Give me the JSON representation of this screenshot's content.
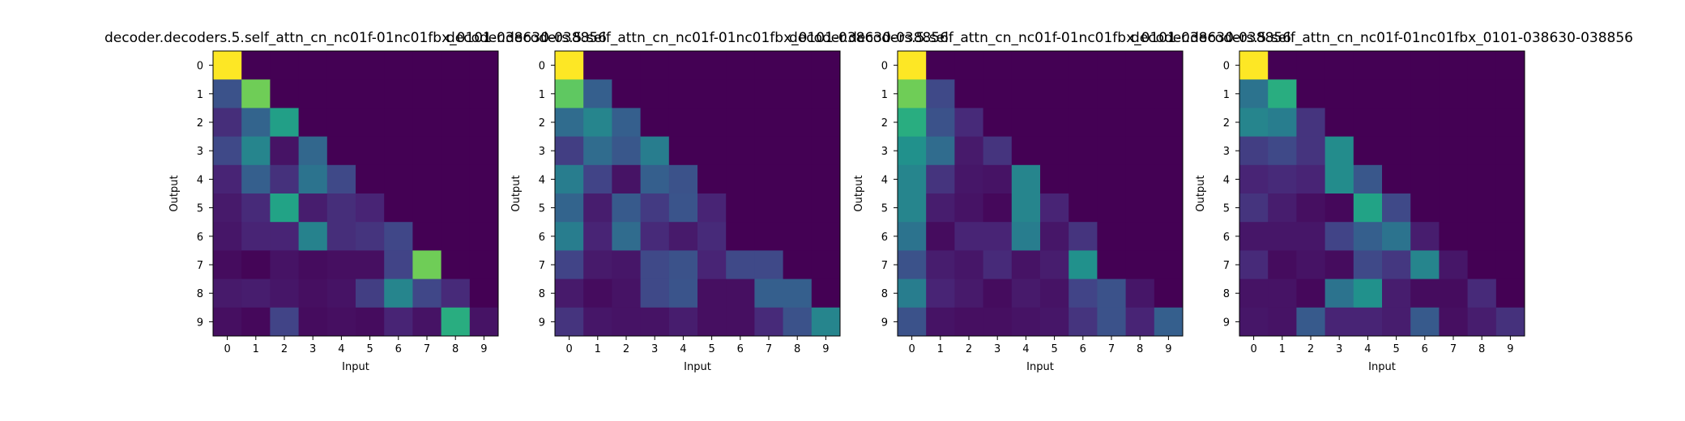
{
  "chart_data": [
    {
      "type": "heatmap",
      "title": "decoder.decoders.5.self_attn_cn_nc01f-01nc01fbx_0101-038630-038856",
      "xlabel": "Input",
      "ylabel": "Output",
      "x_ticks": [
        "0",
        "1",
        "2",
        "3",
        "4",
        "5",
        "6",
        "7",
        "8",
        "9"
      ],
      "y_ticks": [
        "0",
        "1",
        "2",
        "3",
        "4",
        "5",
        "6",
        "7",
        "8",
        "9"
      ],
      "colormap": "viridis",
      "value_range": [
        0,
        1
      ],
      "grid": false,
      "values": [
        [
          1.0,
          0,
          0,
          0,
          0,
          0,
          0,
          0,
          0,
          0
        ],
        [
          0.25,
          0.78,
          0,
          0,
          0,
          0,
          0,
          0,
          0,
          0
        ],
        [
          0.13,
          0.32,
          0.56,
          0,
          0,
          0,
          0,
          0,
          0,
          0
        ],
        [
          0.22,
          0.45,
          0.05,
          0.33,
          0,
          0,
          0,
          0,
          0,
          0
        ],
        [
          0.1,
          0.3,
          0.14,
          0.38,
          0.22,
          0,
          0,
          0,
          0,
          0
        ],
        [
          0.07,
          0.12,
          0.58,
          0.08,
          0.13,
          0.1,
          0,
          0,
          0,
          0
        ],
        [
          0.06,
          0.1,
          0.1,
          0.44,
          0.13,
          0.15,
          0.21,
          0,
          0,
          0
        ],
        [
          0.03,
          0.01,
          0.05,
          0.03,
          0.04,
          0.04,
          0.2,
          0.78,
          0,
          0
        ],
        [
          0.07,
          0.08,
          0.06,
          0.04,
          0.05,
          0.18,
          0.45,
          0.21,
          0.12,
          0
        ],
        [
          0.04,
          0.02,
          0.2,
          0.03,
          0.04,
          0.03,
          0.1,
          0.05,
          0.62,
          0.05
        ]
      ]
    },
    {
      "type": "heatmap",
      "title": "decoder.decoders.5.self_attn_cn_nc01f-01nc01fbx_0101-038630-038856",
      "xlabel": "Input",
      "ylabel": "Output",
      "x_ticks": [
        "0",
        "1",
        "2",
        "3",
        "4",
        "5",
        "6",
        "7",
        "8",
        "9"
      ],
      "y_ticks": [
        "0",
        "1",
        "2",
        "3",
        "4",
        "5",
        "6",
        "7",
        "8",
        "9"
      ],
      "colormap": "viridis",
      "value_range": [
        0,
        1
      ],
      "grid": false,
      "values": [
        [
          1.0,
          0,
          0,
          0,
          0,
          0,
          0,
          0,
          0,
          0
        ],
        [
          0.75,
          0.3,
          0,
          0,
          0,
          0,
          0,
          0,
          0,
          0
        ],
        [
          0.35,
          0.45,
          0.3,
          0,
          0,
          0,
          0,
          0,
          0,
          0
        ],
        [
          0.18,
          0.35,
          0.27,
          0.42,
          0,
          0,
          0,
          0,
          0,
          0
        ],
        [
          0.42,
          0.2,
          0.05,
          0.3,
          0.25,
          0,
          0,
          0,
          0,
          0
        ],
        [
          0.32,
          0.08,
          0.28,
          0.17,
          0.26,
          0.1,
          0,
          0,
          0,
          0
        ],
        [
          0.42,
          0.1,
          0.35,
          0.12,
          0.07,
          0.12,
          0,
          0,
          0,
          0
        ],
        [
          0.2,
          0.07,
          0.06,
          0.22,
          0.25,
          0.1,
          0.22,
          0.22,
          0,
          0
        ],
        [
          0.07,
          0.03,
          0.05,
          0.22,
          0.26,
          0.04,
          0.04,
          0.3,
          0.3,
          0
        ],
        [
          0.15,
          0.06,
          0.05,
          0.05,
          0.08,
          0.04,
          0.04,
          0.12,
          0.25,
          0.45
        ]
      ]
    },
    {
      "type": "heatmap",
      "title": "decoder.decoders.5.self_attn_cn_nc01f-01nc01fbx_0101-038630-038856",
      "xlabel": "Input",
      "ylabel": "Output",
      "x_ticks": [
        "0",
        "1",
        "2",
        "3",
        "4",
        "5",
        "6",
        "7",
        "8",
        "9"
      ],
      "y_ticks": [
        "0",
        "1",
        "2",
        "3",
        "4",
        "5",
        "6",
        "7",
        "8",
        "9"
      ],
      "colormap": "viridis",
      "value_range": [
        0,
        1
      ],
      "grid": false,
      "values": [
        [
          1.0,
          0,
          0,
          0,
          0,
          0,
          0,
          0,
          0,
          0
        ],
        [
          0.78,
          0.22,
          0,
          0,
          0,
          0,
          0,
          0,
          0,
          0
        ],
        [
          0.62,
          0.25,
          0.12,
          0,
          0,
          0,
          0,
          0,
          0,
          0
        ],
        [
          0.5,
          0.35,
          0.07,
          0.15,
          0,
          0,
          0,
          0,
          0,
          0
        ],
        [
          0.45,
          0.15,
          0.06,
          0.05,
          0.45,
          0,
          0,
          0,
          0,
          0
        ],
        [
          0.45,
          0.08,
          0.05,
          0.02,
          0.45,
          0.1,
          0,
          0,
          0,
          0
        ],
        [
          0.38,
          0.03,
          0.1,
          0.1,
          0.42,
          0.06,
          0.15,
          0,
          0,
          0
        ],
        [
          0.25,
          0.08,
          0.06,
          0.12,
          0.05,
          0.08,
          0.5,
          0,
          0,
          0
        ],
        [
          0.42,
          0.1,
          0.07,
          0.03,
          0.07,
          0.05,
          0.2,
          0.25,
          0.06,
          0
        ],
        [
          0.25,
          0.05,
          0.04,
          0.04,
          0.05,
          0.06,
          0.15,
          0.25,
          0.1,
          0.3
        ]
      ]
    },
    {
      "type": "heatmap",
      "title": "decoder.decoders.5.self_attn_cn_nc01f-01nc01fbx_0101-038630-038856",
      "xlabel": "Input",
      "ylabel": "Output",
      "x_ticks": [
        "0",
        "1",
        "2",
        "3",
        "4",
        "5",
        "6",
        "7",
        "8",
        "9"
      ],
      "y_ticks": [
        "0",
        "1",
        "2",
        "3",
        "4",
        "5",
        "6",
        "7",
        "8",
        "9"
      ],
      "colormap": "viridis",
      "value_range": [
        0,
        1
      ],
      "grid": false,
      "values": [
        [
          1.0,
          0,
          0,
          0,
          0,
          0,
          0,
          0,
          0,
          0
        ],
        [
          0.38,
          0.62,
          0,
          0,
          0,
          0,
          0,
          0,
          0,
          0
        ],
        [
          0.45,
          0.42,
          0.15,
          0,
          0,
          0,
          0,
          0,
          0,
          0
        ],
        [
          0.18,
          0.22,
          0.15,
          0.48,
          0,
          0,
          0,
          0,
          0,
          0
        ],
        [
          0.1,
          0.12,
          0.1,
          0.48,
          0.27,
          0,
          0,
          0,
          0,
          0
        ],
        [
          0.15,
          0.08,
          0.04,
          0.02,
          0.58,
          0.22,
          0,
          0,
          0,
          0
        ],
        [
          0.06,
          0.06,
          0.06,
          0.2,
          0.3,
          0.38,
          0.08,
          0,
          0,
          0
        ],
        [
          0.12,
          0.03,
          0.05,
          0.03,
          0.22,
          0.16,
          0.45,
          0.06,
          0,
          0
        ],
        [
          0.05,
          0.05,
          0.02,
          0.38,
          0.5,
          0.08,
          0.03,
          0.03,
          0.12,
          0
        ],
        [
          0.06,
          0.05,
          0.28,
          0.1,
          0.1,
          0.08,
          0.28,
          0.04,
          0.08,
          0.14
        ]
      ]
    }
  ]
}
